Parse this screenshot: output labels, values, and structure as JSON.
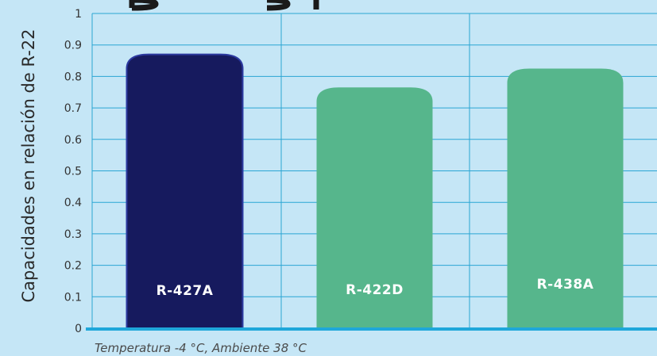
{
  "chart_data": {
    "type": "bar",
    "categories": [
      "R-427A",
      "R-422D",
      "R-438A"
    ],
    "values": [
      0.87,
      0.765,
      0.825
    ],
    "bar_colors": [
      "#161a5e",
      "#56b68c",
      "#56b68c"
    ],
    "ylabel": "Capacidades en relación de R-22",
    "ylim": [
      0,
      1
    ],
    "yticks": [
      "0",
      "0.1",
      "0.2",
      "0.3",
      "0.4",
      "0.5",
      "0.6",
      "0.7",
      "0.8",
      "0.9",
      "1"
    ],
    "grid": true,
    "footnote": "Temperatura -4 °C, Ambiente 38 °C"
  }
}
